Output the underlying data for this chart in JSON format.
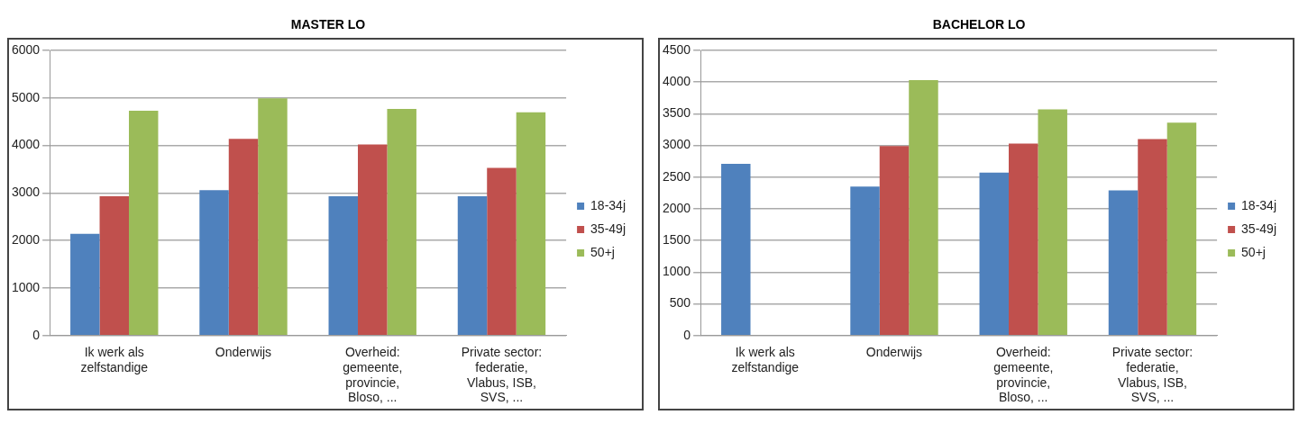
{
  "chart_data": [
    {
      "type": "bar",
      "title": "MASTER LO",
      "categories": [
        "Ik werk als zelfstandige",
        "Onderwijs",
        "Overheid: gemeente, provincie, Bloso, ...",
        "Private sector: federatie, Vlabus, ISB, SVS, ..."
      ],
      "series": [
        {
          "name": "18-34j",
          "color": "#4f81bd",
          "values": [
            2140,
            3060,
            2930,
            2930
          ]
        },
        {
          "name": "35-49j",
          "color": "#c0504d",
          "values": [
            2930,
            4140,
            4020,
            3530
          ]
        },
        {
          "name": "50+j",
          "color": "#9bbb59",
          "values": [
            4730,
            4990,
            4770,
            4700
          ]
        }
      ],
      "ylim": [
        0,
        6000
      ],
      "yticks": [
        0,
        1000,
        2000,
        3000,
        4000,
        5000,
        6000
      ],
      "grid": "y",
      "legend": "right"
    },
    {
      "type": "bar",
      "title": "BACHELOR LO",
      "categories": [
        "Ik werk als zelfstandige",
        "Onderwijs",
        "Overheid: gemeente, provincie, Bloso, ...",
        "Private sector: federatie, Vlabus, ISB, SVS, ..."
      ],
      "series": [
        {
          "name": "18-34j",
          "color": "#4f81bd",
          "values": [
            2710,
            2350,
            2570,
            2290
          ]
        },
        {
          "name": "35-49j",
          "color": "#c0504d",
          "values": [
            null,
            2990,
            3030,
            3100
          ]
        },
        {
          "name": "50+j",
          "color": "#9bbb59",
          "values": [
            null,
            4030,
            3570,
            3360
          ]
        }
      ],
      "ylim": [
        0,
        4500
      ],
      "yticks": [
        0,
        500,
        1000,
        1500,
        2000,
        2500,
        3000,
        3500,
        4000,
        4500
      ],
      "grid": "y",
      "legend": "right"
    }
  ]
}
